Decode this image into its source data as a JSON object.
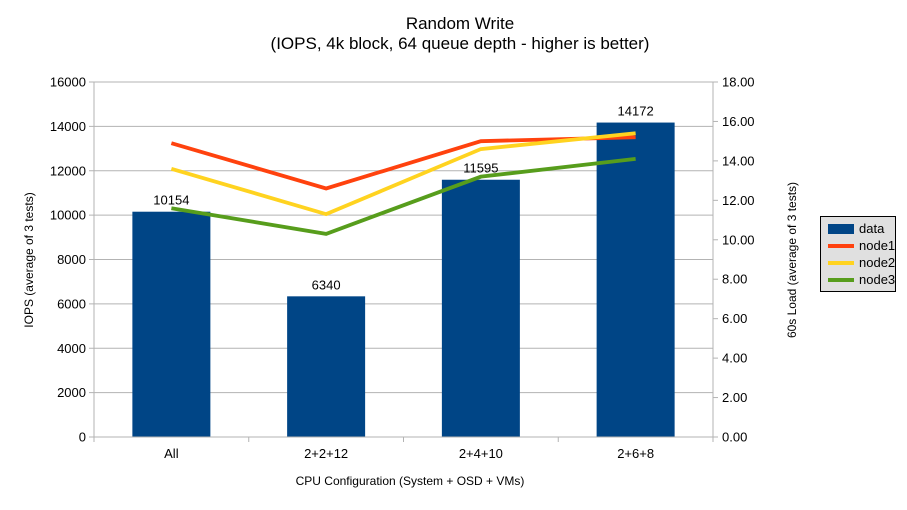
{
  "chart_data": {
    "type": "bar+line",
    "title": "Random Write",
    "subtitle": "(IOPS, 4k block, 64 queue depth - higher is better)",
    "categories": [
      "All",
      "2+2+12",
      "2+4+10",
      "2+6+8"
    ],
    "xlabel": "CPU Configuration (System + OSD + VMs)",
    "left_axis": {
      "label": "IOPS (average of 3 tests)",
      "min": 0,
      "max": 16000,
      "step": 2000,
      "ticks": [
        "0",
        "2000",
        "4000",
        "6000",
        "8000",
        "10000",
        "12000",
        "14000",
        "16000"
      ]
    },
    "right_axis": {
      "label": "60s Load (average of 3 tests)",
      "min": 0,
      "max": 18,
      "step": 2,
      "ticks": [
        "0.00",
        "2.00",
        "4.00",
        "6.00",
        "8.00",
        "10.00",
        "12.00",
        "14.00",
        "16.00",
        "18.00"
      ]
    },
    "bar_series": {
      "name": "data",
      "color": "#004586",
      "axis": "left",
      "values": [
        10154,
        6340,
        11595,
        14172
      ],
      "labels": [
        "10154",
        "6340",
        "11595",
        "14172"
      ]
    },
    "line_series": [
      {
        "name": "node1",
        "color": "#FF420E",
        "axis": "right",
        "values": [
          14.9,
          12.6,
          15.0,
          15.2
        ]
      },
      {
        "name": "node2",
        "color": "#FFD320",
        "axis": "right",
        "values": [
          13.6,
          11.3,
          14.6,
          15.4
        ]
      },
      {
        "name": "node3",
        "color": "#579D1C",
        "axis": "right",
        "values": [
          11.6,
          10.3,
          13.2,
          14.1
        ]
      }
    ],
    "grid": {
      "horizontal": true,
      "color": "#B3B3B3"
    },
    "axis_color": "#B3B3B3",
    "legend": {
      "position": "right",
      "bg": "#E0E0E0",
      "border": "#000000",
      "items": [
        {
          "label": "data",
          "color": "#004586",
          "swatch": "bar"
        },
        {
          "label": "node1",
          "color": "#FF420E",
          "swatch": "line"
        },
        {
          "label": "node2",
          "color": "#FFD320",
          "swatch": "line"
        },
        {
          "label": "node3",
          "color": "#579D1C",
          "swatch": "line"
        }
      ]
    }
  }
}
